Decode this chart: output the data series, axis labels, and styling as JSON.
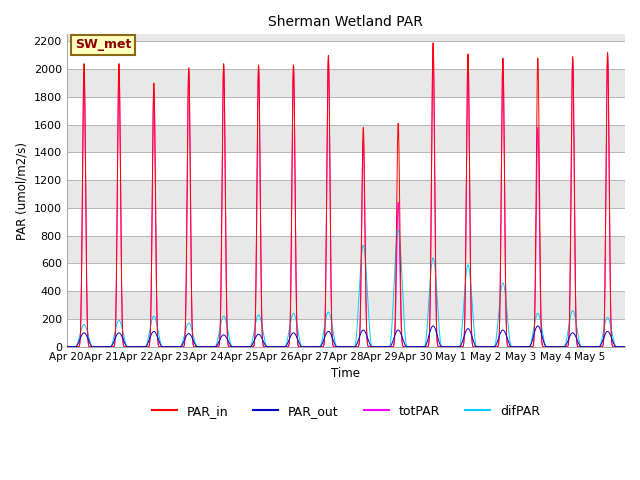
{
  "title": "Sherman Wetland PAR",
  "xlabel": "Time",
  "ylabel": "PAR (umol/m2/s)",
  "ylim": [
    0,
    2250
  ],
  "yticks": [
    0,
    200,
    400,
    600,
    800,
    1000,
    1200,
    1400,
    1600,
    1800,
    2000,
    2200
  ],
  "annotation_text": "SW_met",
  "annotation_bg": "#FFFFC0",
  "annotation_border": "#8B6914",
  "annotation_text_color": "#8B0000",
  "line_colors": {
    "PAR_in": "#FF0000",
    "PAR_out": "#0000CC",
    "totPAR": "#FF00FF",
    "difPAR": "#00CCFF"
  },
  "fig_bg": "#FFFFFF",
  "plot_bg": "#E8E8E8",
  "n_days": 16,
  "n_pts": 288,
  "peak_heights": {
    "apr20": [
      2040,
      100,
      1980,
      160
    ],
    "apr21": [
      2040,
      100,
      2000,
      190
    ],
    "apr22": [
      1900,
      110,
      1850,
      220
    ],
    "apr23": [
      2010,
      95,
      1990,
      170
    ],
    "apr24": [
      2040,
      85,
      2020,
      220
    ],
    "apr25": [
      2030,
      90,
      2010,
      230
    ],
    "apr26": [
      2030,
      100,
      2010,
      240
    ],
    "apr27": [
      2100,
      110,
      2070,
      250
    ],
    "apr28": [
      1580,
      120,
      1480,
      730
    ],
    "apr29": [
      1610,
      120,
      1040,
      840
    ],
    "apr30": [
      2190,
      150,
      2160,
      640
    ],
    "may1": [
      2110,
      130,
      2090,
      590
    ],
    "may2": [
      2080,
      120,
      2070,
      460
    ],
    "may3": [
      2080,
      150,
      1580,
      240
    ],
    "may4": [
      2090,
      100,
      2070,
      260
    ],
    "may5": [
      2120,
      110,
      2100,
      210
    ]
  },
  "xtick_labels": [
    "Apr 20",
    "Apr 21",
    "Apr 22",
    "Apr 23",
    "Apr 24",
    "Apr 25",
    "Apr 26",
    "Apr 27",
    "Apr 28",
    "Apr 29",
    "Apr 30",
    "May 1",
    "May 2",
    "May 3",
    "May 4",
    "May 5",
    ""
  ]
}
